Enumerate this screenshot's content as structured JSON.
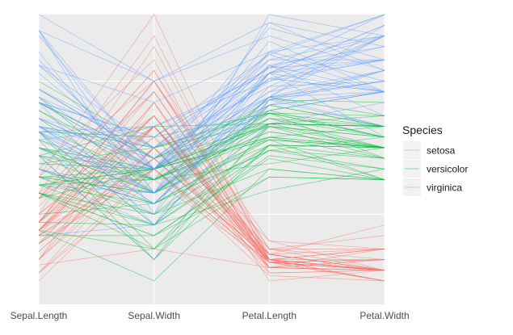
{
  "chart_data": {
    "type": "parallel-coordinates",
    "axes": [
      "Sepal.Length",
      "Sepal.Width",
      "Petal.Length",
      "Petal.Width"
    ],
    "ylim": [
      0,
      1
    ],
    "grid": true,
    "legend": {
      "title": "Species",
      "position": "right",
      "entries": [
        {
          "name": "setosa",
          "color": "#F8766D"
        },
        {
          "name": "versicolor",
          "color": "#00BA38"
        },
        {
          "name": "virginica",
          "color": "#619CFF"
        }
      ]
    },
    "series": [
      {
        "name": "setosa",
        "color": "#F8766D",
        "lines": [
          [
            0.22,
            0.62,
            0.07,
            0.04
          ],
          [
            0.17,
            0.42,
            0.07,
            0.04
          ],
          [
            0.11,
            0.5,
            0.05,
            0.04
          ],
          [
            0.08,
            0.46,
            0.08,
            0.04
          ],
          [
            0.19,
            0.67,
            0.07,
            0.04
          ],
          [
            0.31,
            0.79,
            0.12,
            0.12
          ],
          [
            0.08,
            0.58,
            0.07,
            0.08
          ],
          [
            0.19,
            0.58,
            0.08,
            0.04
          ],
          [
            0.03,
            0.38,
            0.07,
            0.04
          ],
          [
            0.17,
            0.46,
            0.08,
            0.0
          ],
          [
            0.31,
            0.71,
            0.08,
            0.04
          ],
          [
            0.14,
            0.58,
            0.1,
            0.04
          ],
          [
            0.14,
            0.42,
            0.07,
            0.0
          ],
          [
            0.0,
            0.42,
            0.02,
            0.0
          ],
          [
            0.42,
            0.83,
            0.03,
            0.04
          ],
          [
            0.39,
            1.0,
            0.08,
            0.12
          ],
          [
            0.31,
            0.79,
            0.05,
            0.12
          ],
          [
            0.22,
            0.62,
            0.07,
            0.08
          ],
          [
            0.39,
            0.75,
            0.12,
            0.08
          ],
          [
            0.22,
            0.75,
            0.08,
            0.08
          ],
          [
            0.31,
            0.58,
            0.12,
            0.04
          ],
          [
            0.22,
            0.71,
            0.08,
            0.12
          ],
          [
            0.08,
            0.67,
            0.0,
            0.04
          ],
          [
            0.22,
            0.54,
            0.12,
            0.17
          ],
          [
            0.14,
            0.58,
            0.15,
            0.04
          ],
          [
            0.19,
            0.42,
            0.1,
            0.04
          ],
          [
            0.19,
            0.58,
            0.1,
            0.12
          ],
          [
            0.25,
            0.62,
            0.08,
            0.04
          ],
          [
            0.25,
            0.58,
            0.07,
            0.04
          ],
          [
            0.11,
            0.5,
            0.1,
            0.04
          ],
          [
            0.14,
            0.46,
            0.1,
            0.04
          ],
          [
            0.31,
            0.58,
            0.08,
            0.12
          ],
          [
            0.25,
            0.88,
            0.08,
            0.0
          ],
          [
            0.33,
            0.92,
            0.07,
            0.04
          ],
          [
            0.17,
            0.46,
            0.08,
            0.0
          ],
          [
            0.19,
            0.5,
            0.03,
            0.04
          ],
          [
            0.33,
            0.62,
            0.05,
            0.04
          ],
          [
            0.17,
            0.67,
            0.07,
            0.0
          ],
          [
            0.03,
            0.42,
            0.05,
            0.04
          ],
          [
            0.22,
            0.58,
            0.08,
            0.04
          ],
          [
            0.19,
            0.62,
            0.05,
            0.08
          ],
          [
            0.06,
            0.12,
            0.05,
            0.08
          ],
          [
            0.03,
            0.5,
            0.05,
            0.04
          ],
          [
            0.19,
            0.62,
            0.1,
            0.21
          ],
          [
            0.22,
            0.75,
            0.15,
            0.12
          ],
          [
            0.14,
            0.42,
            0.07,
            0.08
          ],
          [
            0.22,
            0.75,
            0.1,
            0.04
          ],
          [
            0.08,
            0.5,
            0.07,
            0.04
          ],
          [
            0.28,
            0.71,
            0.08,
            0.04
          ],
          [
            0.19,
            0.54,
            0.07,
            0.04
          ]
        ]
      },
      {
        "name": "versicolor",
        "color": "#00BA38",
        "lines": [
          [
            0.75,
            0.5,
            0.63,
            0.54
          ],
          [
            0.58,
            0.5,
            0.59,
            0.58
          ],
          [
            0.72,
            0.46,
            0.66,
            0.58
          ],
          [
            0.33,
            0.12,
            0.51,
            0.5
          ],
          [
            0.61,
            0.33,
            0.61,
            0.58
          ],
          [
            0.39,
            0.33,
            0.59,
            0.5
          ],
          [
            0.56,
            0.54,
            0.63,
            0.62
          ],
          [
            0.17,
            0.17,
            0.39,
            0.38
          ],
          [
            0.64,
            0.38,
            0.61,
            0.5
          ],
          [
            0.25,
            0.29,
            0.49,
            0.54
          ],
          [
            0.19,
            0.0,
            0.42,
            0.38
          ],
          [
            0.44,
            0.42,
            0.54,
            0.58
          ],
          [
            0.47,
            0.08,
            0.51,
            0.38
          ],
          [
            0.5,
            0.38,
            0.63,
            0.54
          ],
          [
            0.36,
            0.38,
            0.44,
            0.5
          ],
          [
            0.67,
            0.46,
            0.58,
            0.54
          ],
          [
            0.36,
            0.42,
            0.59,
            0.58
          ],
          [
            0.42,
            0.29,
            0.53,
            0.38
          ],
          [
            0.53,
            0.08,
            0.59,
            0.58
          ],
          [
            0.36,
            0.21,
            0.49,
            0.42
          ],
          [
            0.44,
            0.5,
            0.64,
            0.71
          ],
          [
            0.5,
            0.33,
            0.51,
            0.5
          ],
          [
            0.56,
            0.21,
            0.66,
            0.58
          ],
          [
            0.5,
            0.33,
            0.63,
            0.46
          ],
          [
            0.58,
            0.38,
            0.56,
            0.5
          ],
          [
            0.64,
            0.42,
            0.58,
            0.54
          ],
          [
            0.69,
            0.33,
            0.64,
            0.54
          ],
          [
            0.67,
            0.42,
            0.68,
            0.67
          ],
          [
            0.47,
            0.38,
            0.59,
            0.58
          ],
          [
            0.39,
            0.25,
            0.42,
            0.38
          ],
          [
            0.33,
            0.17,
            0.47,
            0.42
          ],
          [
            0.33,
            0.17,
            0.46,
            0.38
          ],
          [
            0.42,
            0.29,
            0.49,
            0.46
          ],
          [
            0.47,
            0.29,
            0.69,
            0.62
          ],
          [
            0.31,
            0.42,
            0.59,
            0.58
          ],
          [
            0.47,
            0.58,
            0.59,
            0.62
          ],
          [
            0.67,
            0.46,
            0.63,
            0.58
          ],
          [
            0.56,
            0.12,
            0.58,
            0.5
          ],
          [
            0.36,
            0.42,
            0.53,
            0.5
          ],
          [
            0.33,
            0.21,
            0.51,
            0.5
          ],
          [
            0.33,
            0.25,
            0.58,
            0.46
          ],
          [
            0.5,
            0.42,
            0.61,
            0.54
          ],
          [
            0.42,
            0.25,
            0.51,
            0.46
          ],
          [
            0.19,
            0.12,
            0.39,
            0.38
          ],
          [
            0.36,
            0.29,
            0.54,
            0.5
          ],
          [
            0.39,
            0.42,
            0.54,
            0.46
          ],
          [
            0.39,
            0.38,
            0.54,
            0.5
          ],
          [
            0.53,
            0.38,
            0.56,
            0.5
          ],
          [
            0.22,
            0.21,
            0.34,
            0.42
          ],
          [
            0.39,
            0.33,
            0.53,
            0.5
          ]
        ]
      },
      {
        "name": "virginica",
        "color": "#619CFF",
        "lines": [
          [
            0.56,
            0.54,
            0.85,
            1.0
          ],
          [
            0.42,
            0.29,
            0.69,
            0.75
          ],
          [
            0.78,
            0.42,
            0.83,
            0.83
          ],
          [
            0.56,
            0.38,
            0.78,
            0.71
          ],
          [
            0.61,
            0.42,
            0.81,
            0.88
          ],
          [
            0.92,
            0.42,
            0.95,
            0.83
          ],
          [
            0.17,
            0.21,
            0.59,
            0.67
          ],
          [
            0.83,
            0.38,
            0.9,
            0.71
          ],
          [
            0.67,
            0.21,
            0.81,
            0.71
          ],
          [
            0.81,
            0.67,
            0.86,
            1.0
          ],
          [
            0.61,
            0.5,
            0.69,
            0.79
          ],
          [
            0.58,
            0.29,
            0.73,
            0.75
          ],
          [
            0.69,
            0.42,
            0.76,
            0.83
          ],
          [
            0.39,
            0.21,
            0.68,
            0.79
          ],
          [
            0.42,
            0.33,
            0.69,
            0.96
          ],
          [
            0.58,
            0.5,
            0.73,
            0.92
          ],
          [
            0.61,
            0.42,
            0.76,
            0.71
          ],
          [
            0.94,
            0.75,
            0.97,
            0.88
          ],
          [
            0.94,
            0.25,
            1.0,
            0.92
          ],
          [
            0.47,
            0.08,
            0.68,
            0.58
          ],
          [
            0.72,
            0.5,
            0.8,
            0.92
          ],
          [
            0.36,
            0.33,
            0.66,
            0.79
          ],
          [
            0.94,
            0.33,
            0.97,
            0.79
          ],
          [
            0.56,
            0.29,
            0.66,
            0.71
          ],
          [
            0.67,
            0.54,
            0.8,
            0.83
          ],
          [
            0.81,
            0.5,
            0.85,
            0.71
          ],
          [
            0.53,
            0.33,
            0.64,
            0.71
          ],
          [
            0.5,
            0.42,
            0.66,
            0.71
          ],
          [
            0.58,
            0.33,
            0.78,
            0.83
          ],
          [
            0.81,
            0.42,
            0.81,
            0.62
          ],
          [
            0.86,
            0.33,
            0.86,
            0.75
          ],
          [
            1.0,
            0.75,
            0.92,
            0.79
          ],
          [
            0.58,
            0.33,
            0.78,
            0.88
          ],
          [
            0.56,
            0.33,
            0.69,
            0.58
          ],
          [
            0.5,
            0.25,
            0.78,
            0.54
          ],
          [
            0.94,
            0.42,
            0.86,
            0.92
          ],
          [
            0.56,
            0.58,
            0.78,
            0.96
          ],
          [
            0.58,
            0.46,
            0.76,
            0.71
          ],
          [
            0.47,
            0.42,
            0.64,
            0.71
          ],
          [
            0.72,
            0.46,
            0.75,
            0.83
          ],
          [
            0.67,
            0.46,
            0.78,
            0.96
          ],
          [
            0.72,
            0.46,
            0.69,
            0.92
          ],
          [
            0.42,
            0.29,
            0.69,
            0.75
          ],
          [
            0.69,
            0.5,
            0.83,
            0.92
          ],
          [
            0.67,
            0.54,
            0.8,
            1.0
          ],
          [
            0.67,
            0.42,
            0.71,
            0.92
          ],
          [
            0.56,
            0.21,
            0.68,
            0.75
          ],
          [
            0.61,
            0.42,
            0.71,
            0.79
          ],
          [
            0.53,
            0.58,
            0.75,
            0.92
          ],
          [
            0.44,
            0.42,
            0.69,
            0.71
          ]
        ]
      }
    ]
  }
}
